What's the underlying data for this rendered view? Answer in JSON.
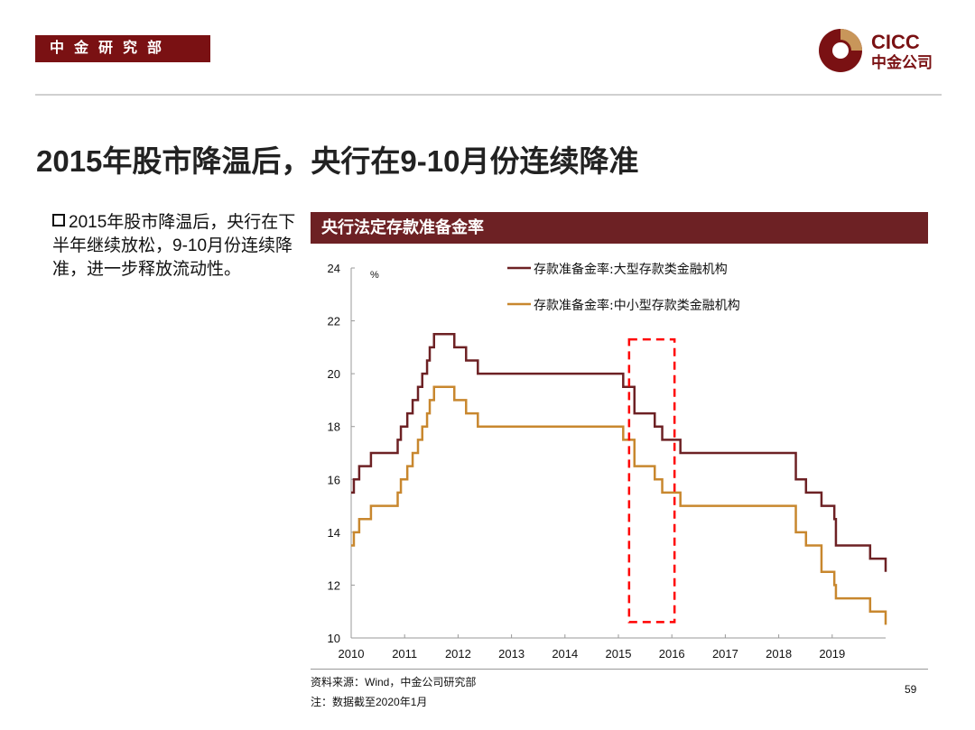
{
  "header": {
    "department": "中金研究部",
    "logo_text": "CICC",
    "logo_subtext": "中金公司"
  },
  "title": "2015年股市降温后，央行在9-10月份连续降准",
  "bullet": "2015年股市降温后，央行在下半年继续放松，9-10月份连续降准，进一步释放流动性。",
  "chart_title": "央行法定存款准备金率",
  "footer": {
    "source": "资料来源：Wind，中金公司研究部",
    "note": "注：数据截至2020年1月",
    "page": "59"
  },
  "chart_data": {
    "type": "line",
    "step": true,
    "yunit": "%",
    "ylim": [
      10,
      24
    ],
    "yticks": [
      "24",
      "22",
      "20",
      "18",
      "16",
      "14",
      "12",
      "10"
    ],
    "xlim": [
      2010,
      2020
    ],
    "xticks": [
      "2010",
      "2011",
      "2012",
      "2013",
      "2014",
      "2015",
      "2016",
      "2017",
      "2018",
      "2019"
    ],
    "grid": false,
    "legend_position": "top",
    "highlight": {
      "x": [
        2015.2,
        2016.05
      ],
      "y": [
        10.6,
        21.3
      ],
      "color": "#ff0000",
      "style": "dashed"
    },
    "series": [
      {
        "name": "存款准备金率:大型存款类金融机构",
        "color": "#6d2124",
        "x": [
          2010.0,
          2010.05,
          2010.15,
          2010.37,
          2010.87,
          2010.93,
          2011.05,
          2011.15,
          2011.25,
          2011.33,
          2011.42,
          2011.47,
          2011.55,
          2011.93,
          2012.15,
          2012.37,
          2015.09,
          2015.3,
          2015.68,
          2015.82,
          2016.16,
          2018.32,
          2018.51,
          2018.8,
          2019.04,
          2019.07,
          2019.71,
          2020.0
        ],
        "y": [
          15.5,
          16.0,
          16.5,
          17.0,
          17.5,
          18.0,
          18.5,
          19.0,
          19.5,
          20.0,
          20.5,
          21.0,
          21.5,
          21.0,
          20.5,
          20.0,
          19.5,
          18.5,
          18.0,
          17.5,
          17.0,
          16.0,
          15.5,
          15.0,
          14.5,
          13.5,
          13.0,
          12.5
        ]
      },
      {
        "name": "存款准备金率:中小型存款类金融机构",
        "color": "#c8872e",
        "x": [
          2010.0,
          2010.05,
          2010.15,
          2010.37,
          2010.87,
          2010.93,
          2011.05,
          2011.15,
          2011.25,
          2011.33,
          2011.42,
          2011.47,
          2011.55,
          2011.93,
          2012.15,
          2012.37,
          2015.09,
          2015.3,
          2015.68,
          2015.82,
          2016.16,
          2018.32,
          2018.51,
          2018.8,
          2019.04,
          2019.07,
          2019.71,
          2020.0
        ],
        "y": [
          13.5,
          14.0,
          14.5,
          15.0,
          15.5,
          16.0,
          16.5,
          17.0,
          17.5,
          18.0,
          18.5,
          19.0,
          19.5,
          19.0,
          18.5,
          18.0,
          17.5,
          16.5,
          16.0,
          15.5,
          15.0,
          14.0,
          13.5,
          12.5,
          12.0,
          11.5,
          11.0,
          10.5
        ]
      }
    ]
  }
}
